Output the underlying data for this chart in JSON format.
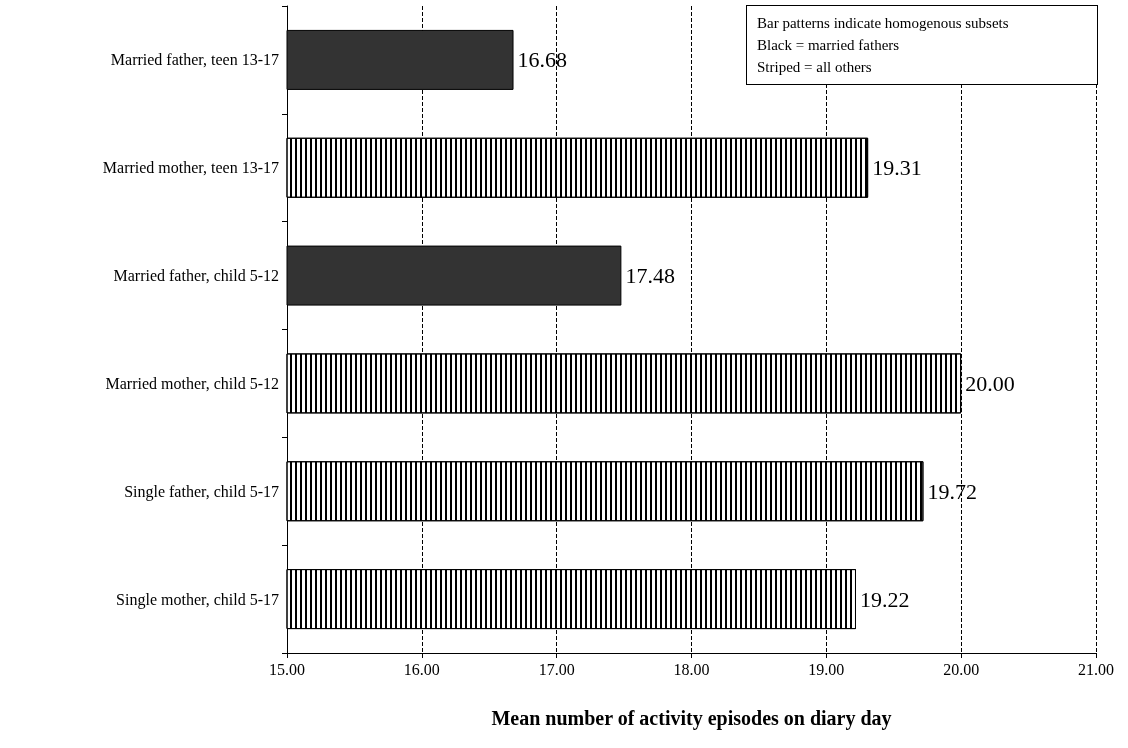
{
  "chart_data": {
    "type": "bar",
    "orientation": "horizontal",
    "categories": [
      "Married father, teen 13-17",
      "Married mother, teen 13-17",
      "Married father, child 5-12",
      "Married mother, child 5-12",
      "Single father, child 5-17",
      "Single mother, child 5-17"
    ],
    "values": [
      16.68,
      19.31,
      17.48,
      20.0,
      19.72,
      19.22
    ],
    "value_labels": [
      "16.68",
      "19.31",
      "17.48",
      "20.00",
      "19.72",
      "19.22"
    ],
    "colors": [
      "#333333",
      "#ffffff",
      "#333333",
      "#ffffff",
      "#ffffff",
      "#ffffff"
    ],
    "xlim": [
      15,
      21
    ],
    "xticks": [
      {
        "value": 15,
        "label": "15.00"
      },
      {
        "value": 16,
        "label": "16.00"
      },
      {
        "value": 17,
        "label": "17.00"
      },
      {
        "value": 18,
        "label": "18.00"
      },
      {
        "value": 19,
        "label": "19.00"
      },
      {
        "value": 20,
        "label": "20.00"
      },
      {
        "value": 21,
        "label": "21.00"
      }
    ],
    "xlabel": "Mean number of activity episodes on diary day",
    "grid": "x",
    "annotations": [
      "Bar patterns indicate homogenous subsets\nBlack = married fathers\nStriped = all others"
    ]
  }
}
